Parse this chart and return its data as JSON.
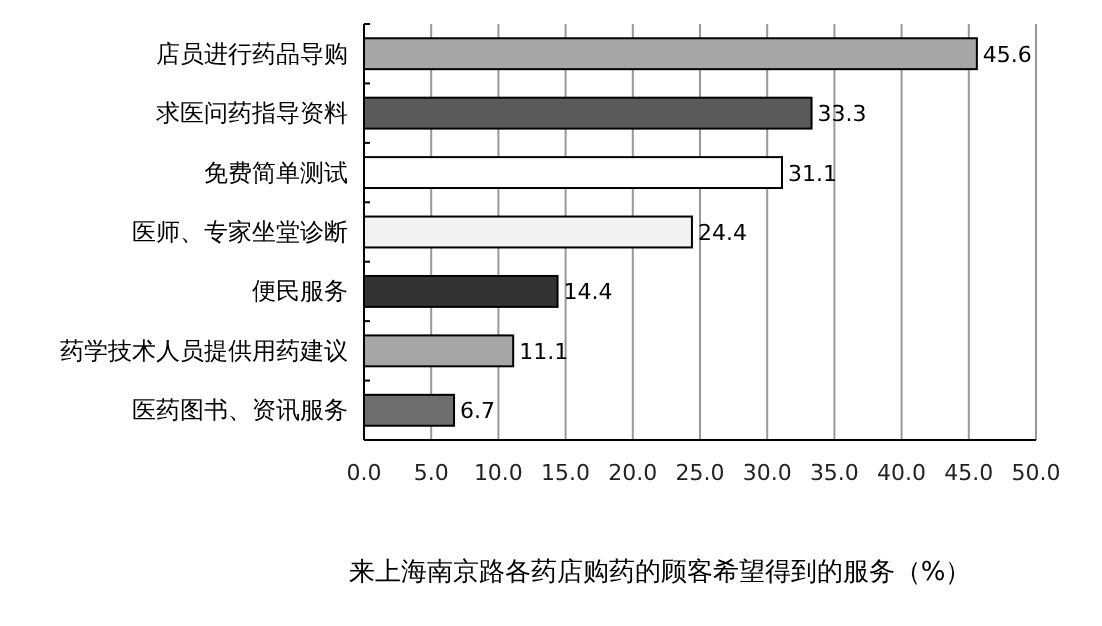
{
  "chart_data": {
    "type": "bar",
    "orientation": "horizontal",
    "title": "来上海南京路各药店购药的顾客希望得到的服务（%）",
    "categories": [
      "店员进行药品导购",
      "求医问药指导资料",
      "免费简单测试",
      "医师、专家坐堂诊断",
      "便民服务",
      "药学技术人员提供用药建议",
      "医药图书、资讯服务"
    ],
    "values": [
      45.6,
      33.3,
      31.1,
      24.4,
      14.4,
      11.1,
      6.7
    ],
    "colors": [
      "#a6a6a6",
      "#5a5a5a",
      "#ffffff",
      "#f2f2f2",
      "#333333",
      "#a6a6a6",
      "#6e6e6e"
    ],
    "data_labels": true,
    "grid": "x",
    "xlim": [
      0,
      50
    ],
    "xticks": [
      {
        "value": 0,
        "label": "0.0"
      },
      {
        "value": 5,
        "label": "5.0"
      },
      {
        "value": 10,
        "label": "10.0"
      },
      {
        "value": 15,
        "label": "15.0"
      },
      {
        "value": 20,
        "label": "20.0"
      },
      {
        "value": 25,
        "label": "25.0"
      },
      {
        "value": 30,
        "label": "30.0"
      },
      {
        "value": 35,
        "label": "35.0"
      },
      {
        "value": 40,
        "label": "40.0"
      },
      {
        "value": 45,
        "label": "45.0"
      },
      {
        "value": 50,
        "label": "50.0"
      }
    ]
  }
}
